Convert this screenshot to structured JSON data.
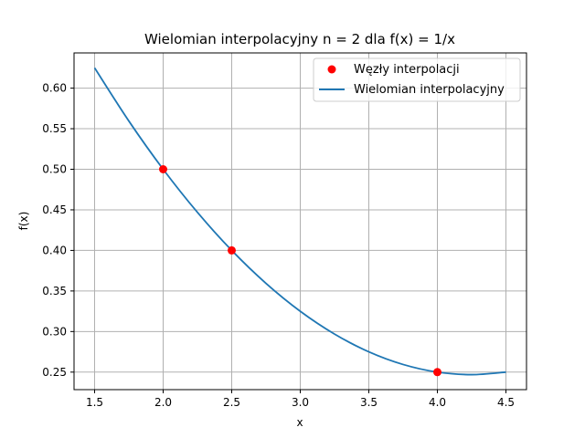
{
  "chart_data": {
    "type": "line",
    "title": "Wielomian interpolacyjny n = 2 dla f(x) = 1/x",
    "xlabel": "x",
    "ylabel": "f(x)",
    "xlim": [
      1.35,
      4.65
    ],
    "ylim": [
      0.2284,
      0.6434
    ],
    "xticks": [
      1.5,
      2.0,
      2.5,
      3.0,
      3.5,
      4.0,
      4.5
    ],
    "xtick_labels": [
      "1.5",
      "2.0",
      "2.5",
      "3.0",
      "3.5",
      "4.0",
      "4.5"
    ],
    "yticks": [
      0.25,
      0.3,
      0.35,
      0.4,
      0.45,
      0.5,
      0.55,
      0.6
    ],
    "ytick_labels": [
      "0.25",
      "0.30",
      "0.35",
      "0.40",
      "0.45",
      "0.50",
      "0.55",
      "0.60"
    ],
    "grid": true,
    "legend_position": "top-right",
    "series": [
      {
        "name": "Węzły interpolacji",
        "kind": "scatter",
        "color": "#ff0000",
        "x": [
          2.0,
          2.5,
          4.0
        ],
        "y": [
          0.5,
          0.4,
          0.25
        ]
      },
      {
        "name": "Wielomian interpolacyjny",
        "kind": "line",
        "color": "#1f77b4",
        "x": [
          1.5,
          1.75,
          2.0,
          2.25,
          2.5,
          2.75,
          3.0,
          3.25,
          3.5,
          3.75,
          4.0,
          4.25,
          4.5
        ],
        "y": [
          0.625,
          0.5594,
          0.5,
          0.4469,
          0.4,
          0.3594,
          0.325,
          0.2969,
          0.275,
          0.2594,
          0.25,
          0.2469,
          0.25
        ]
      }
    ]
  }
}
